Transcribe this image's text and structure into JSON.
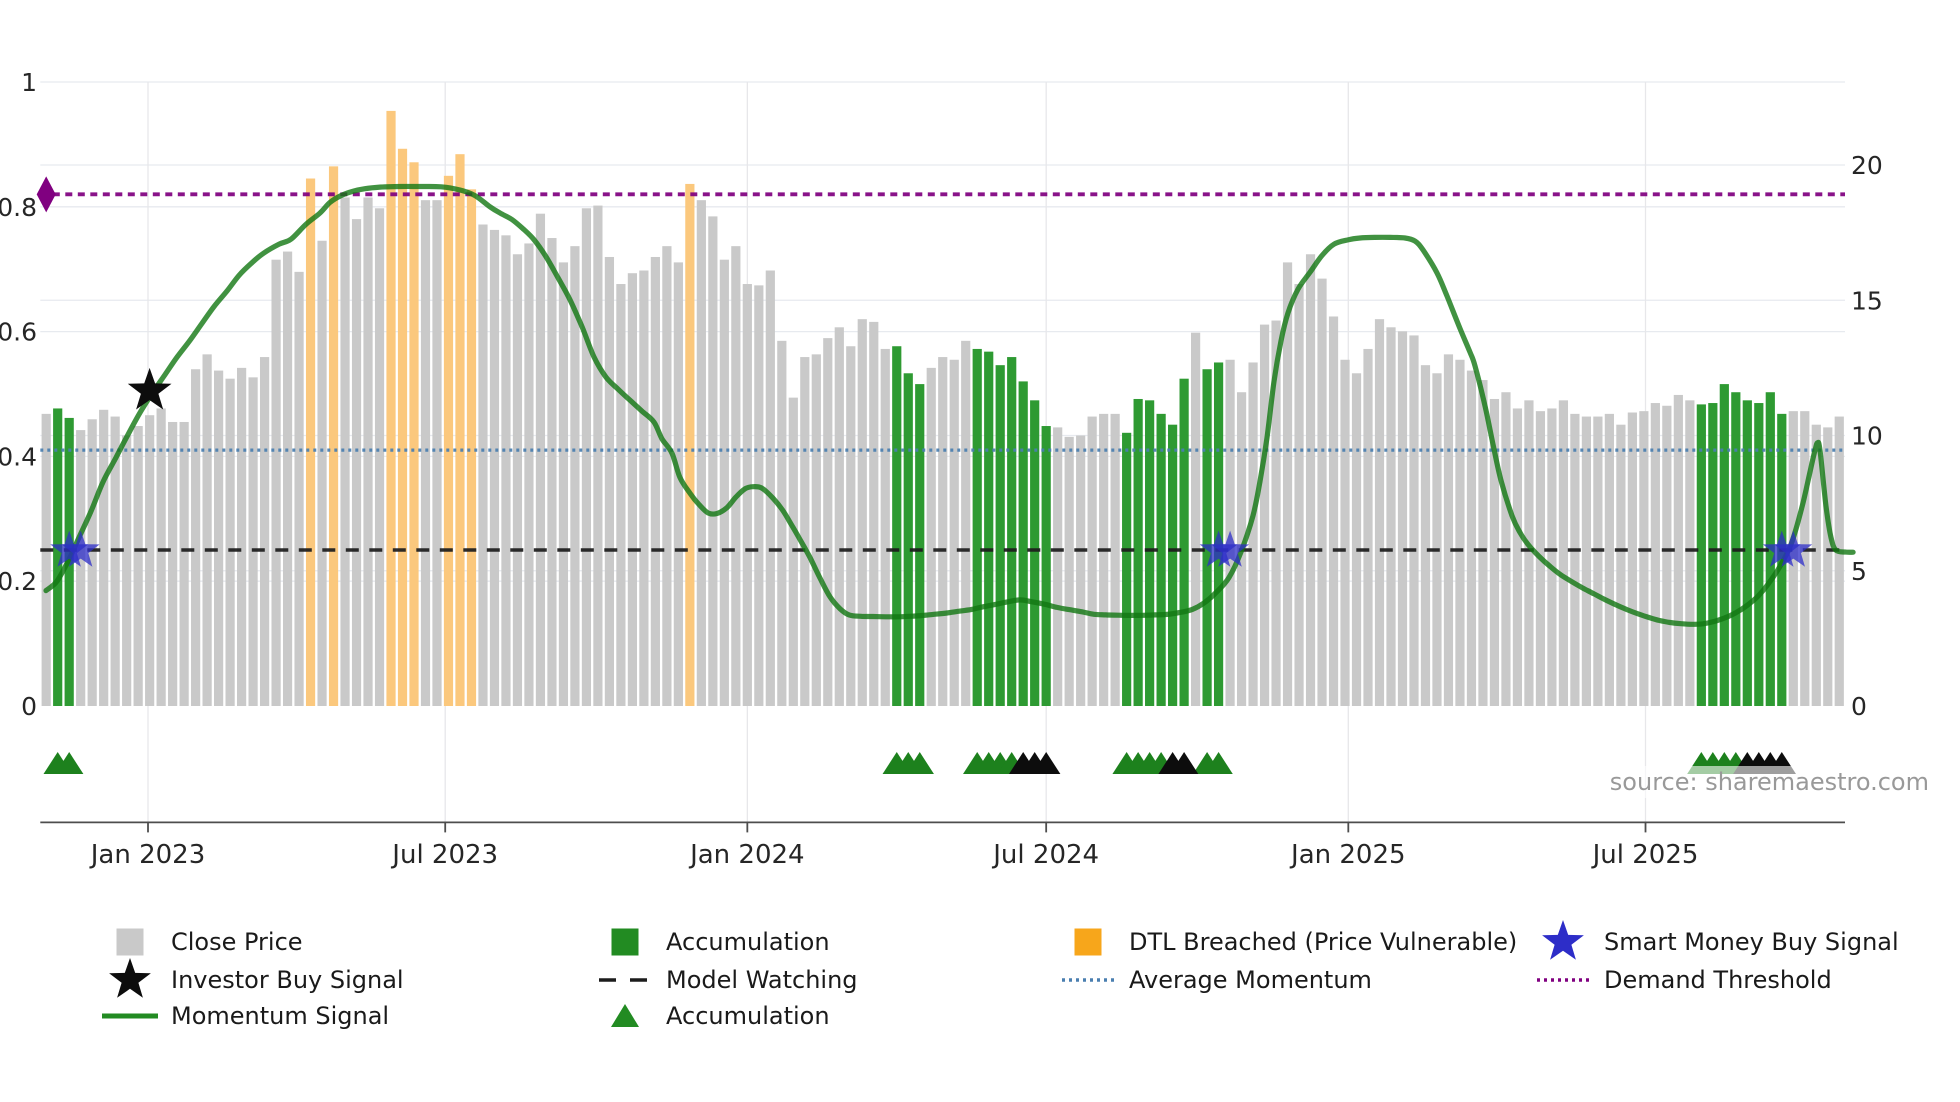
{
  "chart_data": {
    "type": "bar+line",
    "start_date": "2022-10-31",
    "frequency": "weekly",
    "bars": {
      "close": [
        10.8,
        11.0,
        10.65,
        10.2,
        10.6,
        10.95,
        10.7,
        10.0,
        10.35,
        10.75,
        11.0,
        10.5,
        10.5,
        12.45,
        13.0,
        12.4,
        12.1,
        12.5,
        12.15,
        12.9,
        16.5,
        16.8,
        16.05,
        19.5,
        17.2,
        19.95,
        18.8,
        18.0,
        18.8,
        18.4,
        22.0,
        20.6,
        20.1,
        18.7,
        18.7,
        19.6,
        20.4,
        19.1,
        17.8,
        17.6,
        17.4,
        16.7,
        17.1,
        18.2,
        17.3,
        16.4,
        17.0,
        18.4,
        18.5,
        16.6,
        15.6,
        16.0,
        16.1,
        16.6,
        17.0,
        16.4,
        19.3,
        18.7,
        18.1,
        16.5,
        17.0,
        15.6,
        15.55,
        16.1,
        13.5,
        11.4,
        12.9,
        13.0,
        13.6,
        14.0,
        13.3,
        14.3,
        14.2,
        13.2,
        13.3,
        12.3,
        11.9,
        12.5,
        12.9,
        12.8,
        13.5,
        13.2,
        13.1,
        12.6,
        12.9,
        12.0,
        11.3,
        10.35,
        10.3,
        9.95,
        10.0,
        10.7,
        10.8,
        10.8,
        10.1,
        11.35,
        11.3,
        10.8,
        10.4,
        12.1,
        13.8,
        12.45,
        12.7,
        12.8,
        11.6,
        12.7,
        14.1,
        14.25,
        16.4,
        15.6,
        16.7,
        15.8,
        14.4,
        12.8,
        12.3,
        13.2,
        14.3,
        14.0,
        13.85,
        13.7,
        12.6,
        12.3,
        13.0,
        12.8,
        12.4,
        12.05,
        11.35,
        11.6,
        11.0,
        11.3,
        10.9,
        11.0,
        11.3,
        10.8,
        10.7,
        10.7,
        10.8,
        10.4,
        10.85,
        10.9,
        11.2,
        11.1,
        11.5,
        11.3,
        11.15,
        11.2,
        11.9,
        11.6,
        11.3,
        11.2,
        11.6,
        10.8,
        10.9,
        10.9,
        10.4,
        10.3,
        10.7
      ],
      "state": "naannnnnnnnnnnnnnnnnnnndndnnnndddnndddnnnnnnnnnnnnnnnnnndnnnnnnnnnnnnnnnnnaaannnnaaaaaaannnnnnaaaaaanaannnnnnnnnnnnnnnnnnnnnnnnnnnnnnnnnnnnnnnnnaaaaaaaannnnn",
      "state_legend": {
        "n": "normal",
        "a": "accumulation",
        "d": "dtl_breached"
      }
    },
    "momentum_signal": [
      [
        -0.02,
        0.185
      ],
      [
        0.94,
        0.2
      ],
      [
        1.98,
        0.235
      ],
      [
        2.85,
        0.27
      ],
      [
        3.9,
        0.312
      ],
      [
        4.94,
        0.359
      ],
      [
        6.07,
        0.398
      ],
      [
        7.12,
        0.435
      ],
      [
        8.16,
        0.47
      ],
      [
        9.29,
        0.503
      ],
      [
        10.34,
        0.531
      ],
      [
        11.38,
        0.559
      ],
      [
        12.51,
        0.586
      ],
      [
        13.55,
        0.613
      ],
      [
        14.6,
        0.64
      ],
      [
        15.73,
        0.665
      ],
      [
        16.77,
        0.69
      ],
      [
        17.82,
        0.709
      ],
      [
        18.86,
        0.725
      ],
      [
        20.25,
        0.74
      ],
      [
        21.3,
        0.748
      ],
      [
        22.6,
        0.772
      ],
      [
        23.82,
        0.79
      ],
      [
        24.69,
        0.807
      ],
      [
        25.65,
        0.818
      ],
      [
        26.69,
        0.825
      ],
      [
        27.74,
        0.829
      ],
      [
        29.04,
        0.8315
      ],
      [
        30.78,
        0.8325
      ],
      [
        32.52,
        0.8325
      ],
      [
        34.35,
        0.832
      ],
      [
        36.0,
        0.827
      ],
      [
        37.31,
        0.818
      ],
      [
        38.61,
        0.8
      ],
      [
        39.48,
        0.79
      ],
      [
        40.53,
        0.7795
      ],
      [
        41.57,
        0.7634
      ],
      [
        42.44,
        0.7473
      ],
      [
        43.48,
        0.72
      ],
      [
        44.53,
        0.6863
      ],
      [
        45.57,
        0.6509
      ],
      [
        46.62,
        0.6075
      ],
      [
        47.66,
        0.5593
      ],
      [
        48.7,
        0.527
      ],
      [
        49.75,
        0.5078
      ],
      [
        50.79,
        0.49
      ],
      [
        51.84,
        0.4725
      ],
      [
        52.88,
        0.455
      ],
      [
        53.58,
        0.428
      ],
      [
        54.45,
        0.405
      ],
      [
        55.14,
        0.366
      ],
      [
        56.01,
        0.341
      ],
      [
        56.79,
        0.323
      ],
      [
        57.58,
        0.3095
      ],
      [
        58.36,
        0.3085
      ],
      [
        59.23,
        0.318
      ],
      [
        60.01,
        0.335
      ],
      [
        60.8,
        0.348
      ],
      [
        61.49,
        0.3515
      ],
      [
        62.28,
        0.349
      ],
      [
        63.23,
        0.333
      ],
      [
        64.1,
        0.313
      ],
      [
        64.89,
        0.289
      ],
      [
        65.67,
        0.264
      ],
      [
        66.45,
        0.238
      ],
      [
        67.32,
        0.205
      ],
      [
        68.19,
        0.175
      ],
      [
        69.06,
        0.156
      ],
      [
        69.85,
        0.146
      ],
      [
        70.89,
        0.1437
      ],
      [
        71.93,
        0.1434
      ],
      [
        73.06,
        0.143
      ],
      [
        74.11,
        0.143
      ],
      [
        75.15,
        0.1438
      ],
      [
        76.2,
        0.145
      ],
      [
        77.24,
        0.147
      ],
      [
        78.37,
        0.149
      ],
      [
        79.42,
        0.152
      ],
      [
        80.46,
        0.1545
      ],
      [
        81.5,
        0.159
      ],
      [
        82.63,
        0.163
      ],
      [
        83.68,
        0.167
      ],
      [
        84.72,
        0.17
      ],
      [
        85.77,
        0.167
      ],
      [
        86.9,
        0.163
      ],
      [
        87.94,
        0.158
      ],
      [
        88.99,
        0.1545
      ],
      [
        90.12,
        0.151
      ],
      [
        91.16,
        0.147
      ],
      [
        92.2,
        0.146
      ],
      [
        93.25,
        0.1455
      ],
      [
        94.38,
        0.1452
      ],
      [
        95.42,
        0.1453
      ],
      [
        96.47,
        0.146
      ],
      [
        97.51,
        0.1468
      ],
      [
        98.64,
        0.15
      ],
      [
        99.69,
        0.1545
      ],
      [
        100.73,
        0.165
      ],
      [
        101.77,
        0.1815
      ],
      [
        102.91,
        0.206
      ],
      [
        103.95,
        0.247
      ],
      [
        104.99,
        0.305
      ],
      [
        105.6,
        0.36
      ],
      [
        106.21,
        0.43
      ],
      [
        106.82,
        0.52
      ],
      [
        107.43,
        0.585
      ],
      [
        108.04,
        0.63
      ],
      [
        108.91,
        0.668
      ],
      [
        109.95,
        0.695
      ],
      [
        111.0,
        0.722
      ],
      [
        112.04,
        0.74
      ],
      [
        113.26,
        0.747
      ],
      [
        114.3,
        0.75
      ],
      [
        115.61,
        0.751
      ],
      [
        116.91,
        0.751
      ],
      [
        118.22,
        0.75
      ],
      [
        119.09,
        0.745
      ],
      [
        119.78,
        0.731
      ],
      [
        121.0,
        0.694
      ],
      [
        121.87,
        0.657
      ],
      [
        123.0,
        0.605
      ],
      [
        123.87,
        0.567
      ],
      [
        124.31,
        0.545
      ],
      [
        125.18,
        0.481
      ],
      [
        125.87,
        0.42
      ],
      [
        126.57,
        0.3615
      ],
      [
        127.53,
        0.305
      ],
      [
        128.22,
        0.278
      ],
      [
        128.92,
        0.259
      ],
      [
        129.88,
        0.2397
      ],
      [
        130.83,
        0.2238
      ],
      [
        131.79,
        0.21
      ],
      [
        132.75,
        0.199
      ],
      [
        133.7,
        0.189
      ],
      [
        134.66,
        0.1797
      ],
      [
        135.62,
        0.1705
      ],
      [
        136.58,
        0.162
      ],
      [
        137.53,
        0.1545
      ],
      [
        138.49,
        0.1478
      ],
      [
        139.45,
        0.1418
      ],
      [
        140.32,
        0.1372
      ],
      [
        141.27,
        0.1338
      ],
      [
        142.23,
        0.1319
      ],
      [
        143.19,
        0.1309
      ],
      [
        144.14,
        0.1318
      ],
      [
        145.1,
        0.1354
      ],
      [
        146.06,
        0.1414
      ],
      [
        147.02,
        0.1496
      ],
      [
        147.97,
        0.161
      ],
      [
        148.93,
        0.176
      ],
      [
        149.89,
        0.1973
      ],
      [
        150.84,
        0.2238
      ],
      [
        151.8,
        0.259
      ],
      [
        152.76,
        0.319
      ],
      [
        153.45,
        0.375
      ],
      [
        153.89,
        0.41
      ],
      [
        154.11,
        0.4216
      ],
      [
        154.32,
        0.41
      ],
      [
        154.85,
        0.32
      ],
      [
        155.28,
        0.27
      ],
      [
        155.72,
        0.2495
      ],
      [
        156.59,
        0.2467
      ],
      [
        157.2,
        0.2465
      ]
    ],
    "hlines": {
      "demand_threshold": 0.82,
      "average_momentum": 0.41,
      "model_watching": 0.25
    },
    "markers": {
      "investor_buy_signal": {
        "week": 9,
        "value": 0.505
      },
      "smart_money_buy_signals": {
        "weeks": [
          2,
          3,
          102,
          103,
          151,
          152
        ],
        "value": 0.249
      },
      "demand_threshold_start": {
        "week": 0,
        "value": 0.82
      },
      "accumulation_triangles_green": [
        1,
        2,
        74,
        75,
        76,
        81,
        82,
        83,
        84,
        94,
        95,
        96,
        97,
        101,
        102,
        144,
        145,
        146,
        147
      ],
      "accumulation_triangles_black": [
        85,
        86,
        87,
        98,
        99,
        148,
        149,
        150,
        151
      ]
    },
    "x_axis": {
      "tick_labels": [
        "Jan 2023",
        "Jul 2023",
        "Jan 2024",
        "Jul 2024",
        "Jan 2025",
        "Jul 2025"
      ],
      "tick_dates": [
        "2023-01-01",
        "2023-07-01",
        "2024-01-01",
        "2024-07-01",
        "2025-01-01",
        "2025-07-01"
      ]
    },
    "y_left": {
      "tick_labels": [
        "0",
        "0.2",
        "0.4",
        "0.6",
        "0.8",
        "1"
      ],
      "tick_values": [
        0,
        0.2,
        0.4,
        0.6,
        0.8,
        1
      ],
      "range": [
        0,
        1.0045
      ]
    },
    "y_right": {
      "tick_labels": [
        "0",
        "5",
        "10",
        "15",
        "20"
      ],
      "tick_values": [
        0,
        5,
        10,
        15,
        20
      ],
      "range": [
        0,
        23.07
      ]
    }
  },
  "colors": {
    "close_price_bar": "#c9c9c9",
    "accumulation_bar": "#2e9a32",
    "dtl_bar": "#fbc87d",
    "momentum_line": "#117711",
    "model_watching": "#1c1c1c",
    "average_momentum": "#4a7fb0",
    "demand_threshold": "#800080",
    "investor_star": "#0d0d0d",
    "smart_money_star": "#2d2dc8",
    "triangle_green": "#1d811d",
    "triangle_black": "#0d0d0d",
    "legend_accumulation": "#228b22",
    "legend_dtl": "#f7a61b",
    "grid": "#e7eaef",
    "spine": "#4d4d4d",
    "tick_text": "#262626",
    "source_text": "#999999"
  },
  "legend": {
    "items": [
      {
        "label": "Close Price",
        "glyph": "square",
        "color_key": "close_price_bar",
        "col": 0,
        "row": 0
      },
      {
        "label": "Investor Buy Signal",
        "glyph": "star",
        "color_key": "investor_star",
        "col": 0,
        "row": 1
      },
      {
        "label": "Momentum Signal",
        "glyph": "line",
        "color_key": "legend_accumulation",
        "col": 0,
        "row": 2
      },
      {
        "label": "Accumulation",
        "glyph": "square",
        "color_key": "legend_accumulation",
        "col": 1,
        "row": 0
      },
      {
        "label": "Model Watching",
        "glyph": "dashed",
        "color_key": "model_watching",
        "col": 1,
        "row": 1
      },
      {
        "label": "Accumulation",
        "glyph": "triangle",
        "color_key": "legend_accumulation",
        "col": 1,
        "row": 2
      },
      {
        "label": "DTL Breached (Price Vulnerable)",
        "glyph": "square",
        "color_key": "legend_dtl",
        "col": 2,
        "row": 0
      },
      {
        "label": "Average Momentum",
        "glyph": "dotted",
        "color_key": "average_momentum",
        "col": 2,
        "row": 1
      },
      {
        "label": "Smart Money Buy Signal",
        "glyph": "star",
        "color_key": "smart_money_star",
        "col": 3,
        "row": 0
      },
      {
        "label": "Demand Threshold",
        "glyph": "dotted",
        "color_key": "demand_threshold",
        "col": 3,
        "row": 1
      }
    ]
  },
  "source_text": "source: sharemaestro.com"
}
